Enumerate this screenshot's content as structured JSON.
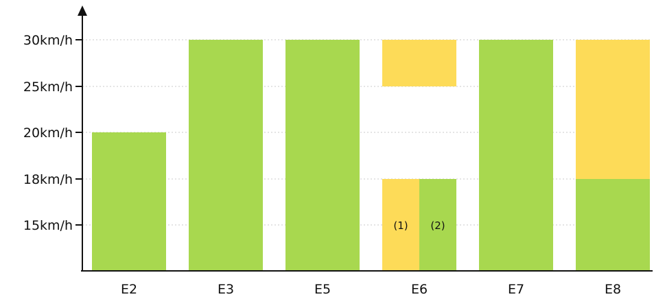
{
  "chart_data": {
    "type": "bar",
    "title": "",
    "xlabel": "",
    "ylabel": "",
    "y_ticks": [
      {
        "label": "15km/h"
      },
      {
        "label": "18km/h"
      },
      {
        "label": "20km/h"
      },
      {
        "label": "25km/h"
      },
      {
        "label": "30km/h"
      }
    ],
    "categories": [
      "E2",
      "E3",
      "E5",
      "E6",
      "E7",
      "E8"
    ],
    "grid": "horizontal dotted",
    "colors": {
      "green": "#a8d84f",
      "yellow": "#fddb58"
    },
    "bars": [
      {
        "category": "E2",
        "segments": [
          {
            "from": "base",
            "to": "20km/h",
            "color": "green"
          }
        ]
      },
      {
        "category": "E3",
        "segments": [
          {
            "from": "base",
            "to": "30km/h",
            "color": "green"
          }
        ]
      },
      {
        "category": "E5",
        "segments": [
          {
            "from": "base",
            "to": "30km/h",
            "color": "green"
          }
        ]
      },
      {
        "category": "E6",
        "segments": [
          {
            "from": "base",
            "to": "18km/h",
            "color": "yellow",
            "part": "left",
            "label": "(1)"
          },
          {
            "from": "base",
            "to": "18km/h",
            "color": "green",
            "part": "right",
            "label": "(2)"
          },
          {
            "from": "25km/h",
            "to": "30km/h",
            "color": "yellow"
          }
        ]
      },
      {
        "category": "E7",
        "segments": [
          {
            "from": "base",
            "to": "30km/h",
            "color": "green"
          }
        ]
      },
      {
        "category": "E8",
        "segments": [
          {
            "from": "base",
            "to": "18km/h",
            "color": "green"
          },
          {
            "from": "18km/h",
            "to": "30km/h",
            "color": "yellow"
          }
        ]
      }
    ]
  }
}
